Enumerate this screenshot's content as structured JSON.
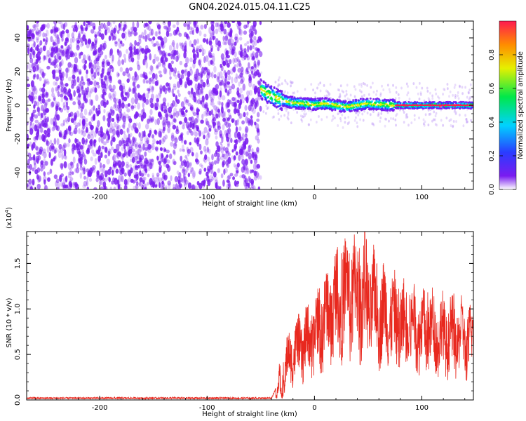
{
  "title": "GN04.2024.015.04.11.C25",
  "chart_data": [
    {
      "type": "heatmap",
      "xlabel": "Height of straight line (km)",
      "ylabel": "Frequency (Hz)",
      "xlim": [
        -268,
        148
      ],
      "ylim": [
        -50,
        50
      ],
      "xticks": [
        -200,
        -100,
        0,
        100
      ],
      "yticks": [
        -40,
        -20,
        0,
        20,
        40
      ],
      "colorbar": {
        "label": "Normalized spectral amplitude",
        "range": [
          0,
          1
        ],
        "ticks": [
          0.0,
          0.2,
          0.4,
          0.6,
          0.8
        ],
        "colormap": "rainbow",
        "colors": [
          "#ffffff",
          "#7a1cf0",
          "#2a3cff",
          "#00d2ff",
          "#00e84a",
          "#e6f000",
          "#ff8c00",
          "#ff1a50"
        ]
      },
      "features": {
        "noise_region_x": [
          -268,
          -50
        ],
        "noise_color": "#7a1cf0",
        "signal_start_x": -50,
        "signal_center_hz": [
          [
            -50,
            10
          ],
          [
            -44,
            7
          ],
          [
            -38,
            5
          ],
          [
            -30,
            3
          ],
          [
            -20,
            1.5
          ],
          [
            -10,
            1
          ],
          [
            0,
            0.5
          ],
          [
            10,
            1
          ],
          [
            20,
            0
          ],
          [
            30,
            -1
          ],
          [
            40,
            0
          ],
          [
            50,
            1
          ],
          [
            60,
            0.5
          ],
          [
            70,
            0.2
          ],
          [
            80,
            0
          ],
          [
            100,
            0
          ],
          [
            120,
            0
          ],
          [
            148,
            0
          ]
        ]
      }
    },
    {
      "type": "line",
      "xlabel": "Height of straight line (km)",
      "ylabel": "SNR (10 * v/v)",
      "yscale_label": "(x10",
      "yscale_exp": "4",
      "xlim": [
        -268,
        148
      ],
      "ylim": [
        0,
        1.85
      ],
      "xticks": [
        -200,
        -100,
        0,
        100
      ],
      "yticks": [
        0.0,
        0.5,
        1.0,
        1.5
      ],
      "color": "#e8281e",
      "envelope": [
        [
          -268,
          0.02
        ],
        [
          -200,
          0.02
        ],
        [
          -100,
          0.02
        ],
        [
          -40,
          0.02
        ],
        [
          -35,
          0.15
        ],
        [
          -33,
          0.4
        ],
        [
          -30,
          0.15
        ],
        [
          -26,
          0.6
        ],
        [
          -20,
          0.75
        ],
        [
          -10,
          0.85
        ],
        [
          0,
          0.95
        ],
        [
          10,
          1.2
        ],
        [
          20,
          1.4
        ],
        [
          30,
          1.5
        ],
        [
          40,
          1.55
        ],
        [
          50,
          1.45
        ],
        [
          60,
          1.3
        ],
        [
          70,
          1.2
        ],
        [
          80,
          1.1
        ],
        [
          100,
          1.05
        ],
        [
          120,
          0.98
        ],
        [
          148,
          0.9
        ]
      ]
    }
  ]
}
